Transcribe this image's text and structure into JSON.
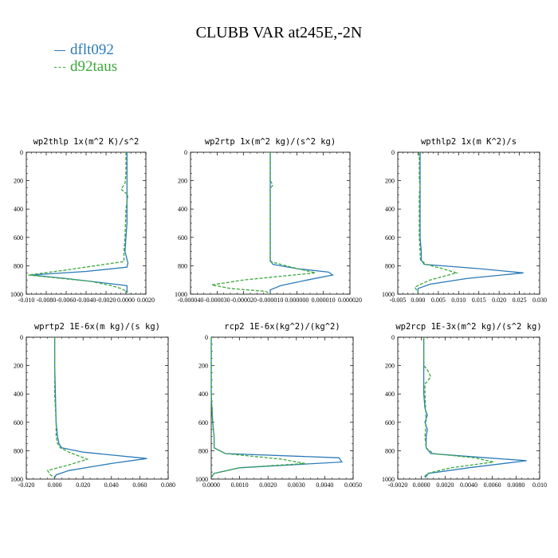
{
  "title": "CLUBB VAR at245E,-2N",
  "legend": [
    {
      "name": "dflt092",
      "color": "#2b7bb9",
      "dash": ""
    },
    {
      "name": "d92taus",
      "color": "#3aa83a",
      "dash": "4,2"
    }
  ],
  "chart_data": [
    {
      "type": "line",
      "title": "wp2thlp   1x(m^2 K)/s^2",
      "xlim": [
        -0.01,
        0.002
      ],
      "ylim": [
        1000,
        0
      ],
      "xticks": [
        "-0.010",
        "-0.0080",
        "-0.0060",
        "-0.0040",
        "-0.0020",
        "0.0000",
        "0.0020"
      ],
      "yticks": [
        "0",
        "200",
        "400",
        "600",
        "800",
        "1000"
      ],
      "series": [
        {
          "name": "dflt092",
          "x": [
            0.0001,
            0.0001,
            0.0001,
            0.0001,
            0.0,
            -0.0001,
            0.0002,
            0.0001,
            -0.004,
            -0.0095,
            -0.006,
            0.0001,
            0.0001,
            0.0001
          ],
          "y": [
            0,
            200,
            400,
            500,
            600,
            700,
            780,
            810,
            840,
            865,
            890,
            940,
            970,
            990
          ]
        },
        {
          "name": "d92taus",
          "x": [
            0.0,
            0.0,
            -0.0001,
            -0.0005,
            0.0002,
            0.0,
            -0.0001,
            -0.0002,
            -0.0002,
            -0.006,
            -0.0098,
            -0.0035,
            -0.0015,
            -0.0005,
            0.0002
          ],
          "y": [
            0,
            150,
            220,
            260,
            300,
            400,
            600,
            700,
            770,
            830,
            865,
            910,
            940,
            960,
            985
          ]
        }
      ]
    },
    {
      "type": "line",
      "title": "wp2rtp   1x(m^2 kg)/(s^2 kg)",
      "xlim": [
        -4e-05,
        2e-05
      ],
      "ylim": [
        1000,
        0
      ],
      "xticks": [
        "-0.000040",
        "-0.000030",
        "-0.000020",
        "-0.000010",
        "0.000000",
        "0.000010",
        "0.000020"
      ],
      "yticks": [
        "0",
        "200",
        "400",
        "600",
        "800",
        "1000"
      ],
      "series": [
        {
          "name": "dflt092",
          "x": [
            -1e-05,
            -1e-05,
            -1e-05,
            -1e-05,
            -1e-05,
            -1e-05,
            -9e-06,
            0.0,
            1.2e-05,
            1.35e-05,
            4e-06,
            -6e-06,
            -1e-05,
            -1e-05
          ],
          "y": [
            0,
            200,
            400,
            600,
            700,
            760,
            790,
            820,
            845,
            865,
            900,
            940,
            970,
            990
          ]
        },
        {
          "name": "d92taus",
          "x": [
            -1e-05,
            -1e-05,
            -9e-06,
            -1e-05,
            -1e-05,
            -1e-05,
            -1e-05,
            -1e-05,
            -2e-06,
            7e-06,
            -2e-05,
            -3.2e-05,
            -2.5e-05,
            -1.2e-05,
            -1e-05
          ],
          "y": [
            0,
            200,
            230,
            260,
            300,
            600,
            700,
            770,
            810,
            850,
            900,
            935,
            960,
            980,
            995
          ]
        }
      ]
    },
    {
      "type": "line",
      "title": "wpthlp2   1x(m K^2)/s",
      "xlim": [
        -0.005,
        0.03
      ],
      "ylim": [
        1000,
        0
      ],
      "xticks": [
        "-0.005",
        "0.000",
        "0.005",
        "0.010",
        "0.015",
        "0.020",
        "0.025",
        "0.030"
      ],
      "yticks": [
        "0",
        "200",
        "400",
        "600",
        "800",
        "1000"
      ],
      "series": [
        {
          "name": "dflt092",
          "x": [
            0.0005,
            0.0005,
            0.0005,
            0.0005,
            0.0008,
            0.0008,
            0.0015,
            0.015,
            0.026,
            0.012,
            0.003,
            0.0,
            0.0
          ],
          "y": [
            0,
            200,
            400,
            600,
            700,
            760,
            790,
            820,
            850,
            890,
            930,
            960,
            990
          ]
        },
        {
          "name": "d92taus",
          "x": [
            0.0003,
            0.0003,
            0.0005,
            0.0003,
            0.0003,
            0.0005,
            0.0006,
            0.002,
            0.006,
            0.0095,
            0.003,
            -0.0008,
            0.0
          ],
          "y": [
            0,
            200,
            230,
            300,
            600,
            700,
            760,
            790,
            820,
            850,
            900,
            950,
            990
          ]
        }
      ]
    },
    {
      "type": "line",
      "title": "wprtp2   1E-6x(m kg)/(s kg)",
      "xlim": [
        -0.02,
        0.08
      ],
      "ylim": [
        1000,
        0
      ],
      "xticks": [
        "-0.020",
        "0.000",
        "0.020",
        "0.040",
        "0.060",
        "0.080"
      ],
      "yticks": [
        "0",
        "200",
        "400",
        "600",
        "800",
        "1000"
      ],
      "series": [
        {
          "name": "dflt092",
          "x": [
            0.0,
            0.0,
            0.0005,
            0.001,
            0.002,
            0.003,
            0.005,
            0.02,
            0.065,
            0.04,
            0.01,
            0.001,
            0.0
          ],
          "y": [
            0,
            200,
            400,
            600,
            700,
            750,
            780,
            810,
            855,
            890,
            940,
            970,
            990
          ]
        },
        {
          "name": "d92taus",
          "x": [
            0.0,
            0.0,
            0.0,
            0.001,
            0.001,
            0.002,
            0.004,
            0.01,
            0.023,
            0.01,
            -0.005,
            -0.003,
            0.0
          ],
          "y": [
            0,
            200,
            400,
            600,
            700,
            750,
            780,
            810,
            860,
            900,
            940,
            970,
            990
          ]
        }
      ]
    },
    {
      "type": "line",
      "title": "rcp2   1E-6x(kg^2)/(kg^2)",
      "xlim": [
        0,
        0.005
      ],
      "ylim": [
        1000,
        0
      ],
      "xticks": [
        "0.0000",
        "0.0010",
        "0.0020",
        "0.0030",
        "0.0040",
        "0.0050"
      ],
      "yticks": [
        "0",
        "200",
        "400",
        "600",
        "800",
        "1000"
      ],
      "series": [
        {
          "name": "dflt092",
          "x": [
            0.0,
            0.0,
            0.0,
            5e-05,
            0.0001,
            0.0001,
            0.0005,
            0.0045,
            0.0046,
            0.001,
            0.0001,
            0.0
          ],
          "y": [
            0,
            200,
            400,
            600,
            700,
            780,
            820,
            850,
            880,
            920,
            960,
            990
          ]
        },
        {
          "name": "d92taus",
          "x": [
            0.0,
            0.0,
            0.0,
            5e-05,
            0.0001,
            0.0001,
            0.0005,
            0.0025,
            0.0033,
            0.001,
            0.0001,
            0.0
          ],
          "y": [
            0,
            200,
            400,
            600,
            700,
            780,
            820,
            860,
            890,
            920,
            960,
            990
          ]
        }
      ]
    },
    {
      "type": "line",
      "title": "wp2rcp   1E-3x(m^2 kg)/(s^2 kg)",
      "xlim": [
        -0.002,
        0.01
      ],
      "ylim": [
        1000,
        0
      ],
      "xticks": [
        "-0.0020",
        "0.0000",
        "0.0020",
        "0.0040",
        "0.0060",
        "0.0080",
        "0.010"
      ],
      "yticks": [
        "0",
        "200",
        "400",
        "600",
        "800",
        "1000"
      ],
      "series": [
        {
          "name": "dflt092",
          "x": [
            0.0002,
            0.0002,
            0.0002,
            0.0003,
            0.0005,
            0.0003,
            0.0005,
            0.0004,
            0.0004,
            0.0008,
            0.0055,
            0.0089,
            0.004,
            0.0006,
            0.0003
          ],
          "y": [
            0,
            200,
            400,
            500,
            550,
            600,
            650,
            700,
            780,
            820,
            850,
            870,
            920,
            960,
            990
          ]
        },
        {
          "name": "d92taus",
          "x": [
            0.0002,
            0.0002,
            0.0005,
            0.0008,
            0.0003,
            0.0003,
            0.0004,
            0.0003,
            0.0004,
            0.001,
            0.0045,
            0.0061,
            0.0025,
            0.0005,
            0.0002
          ],
          "y": [
            0,
            200,
            230,
            280,
            330,
            400,
            600,
            700,
            780,
            820,
            850,
            880,
            920,
            960,
            990
          ]
        }
      ]
    }
  ]
}
